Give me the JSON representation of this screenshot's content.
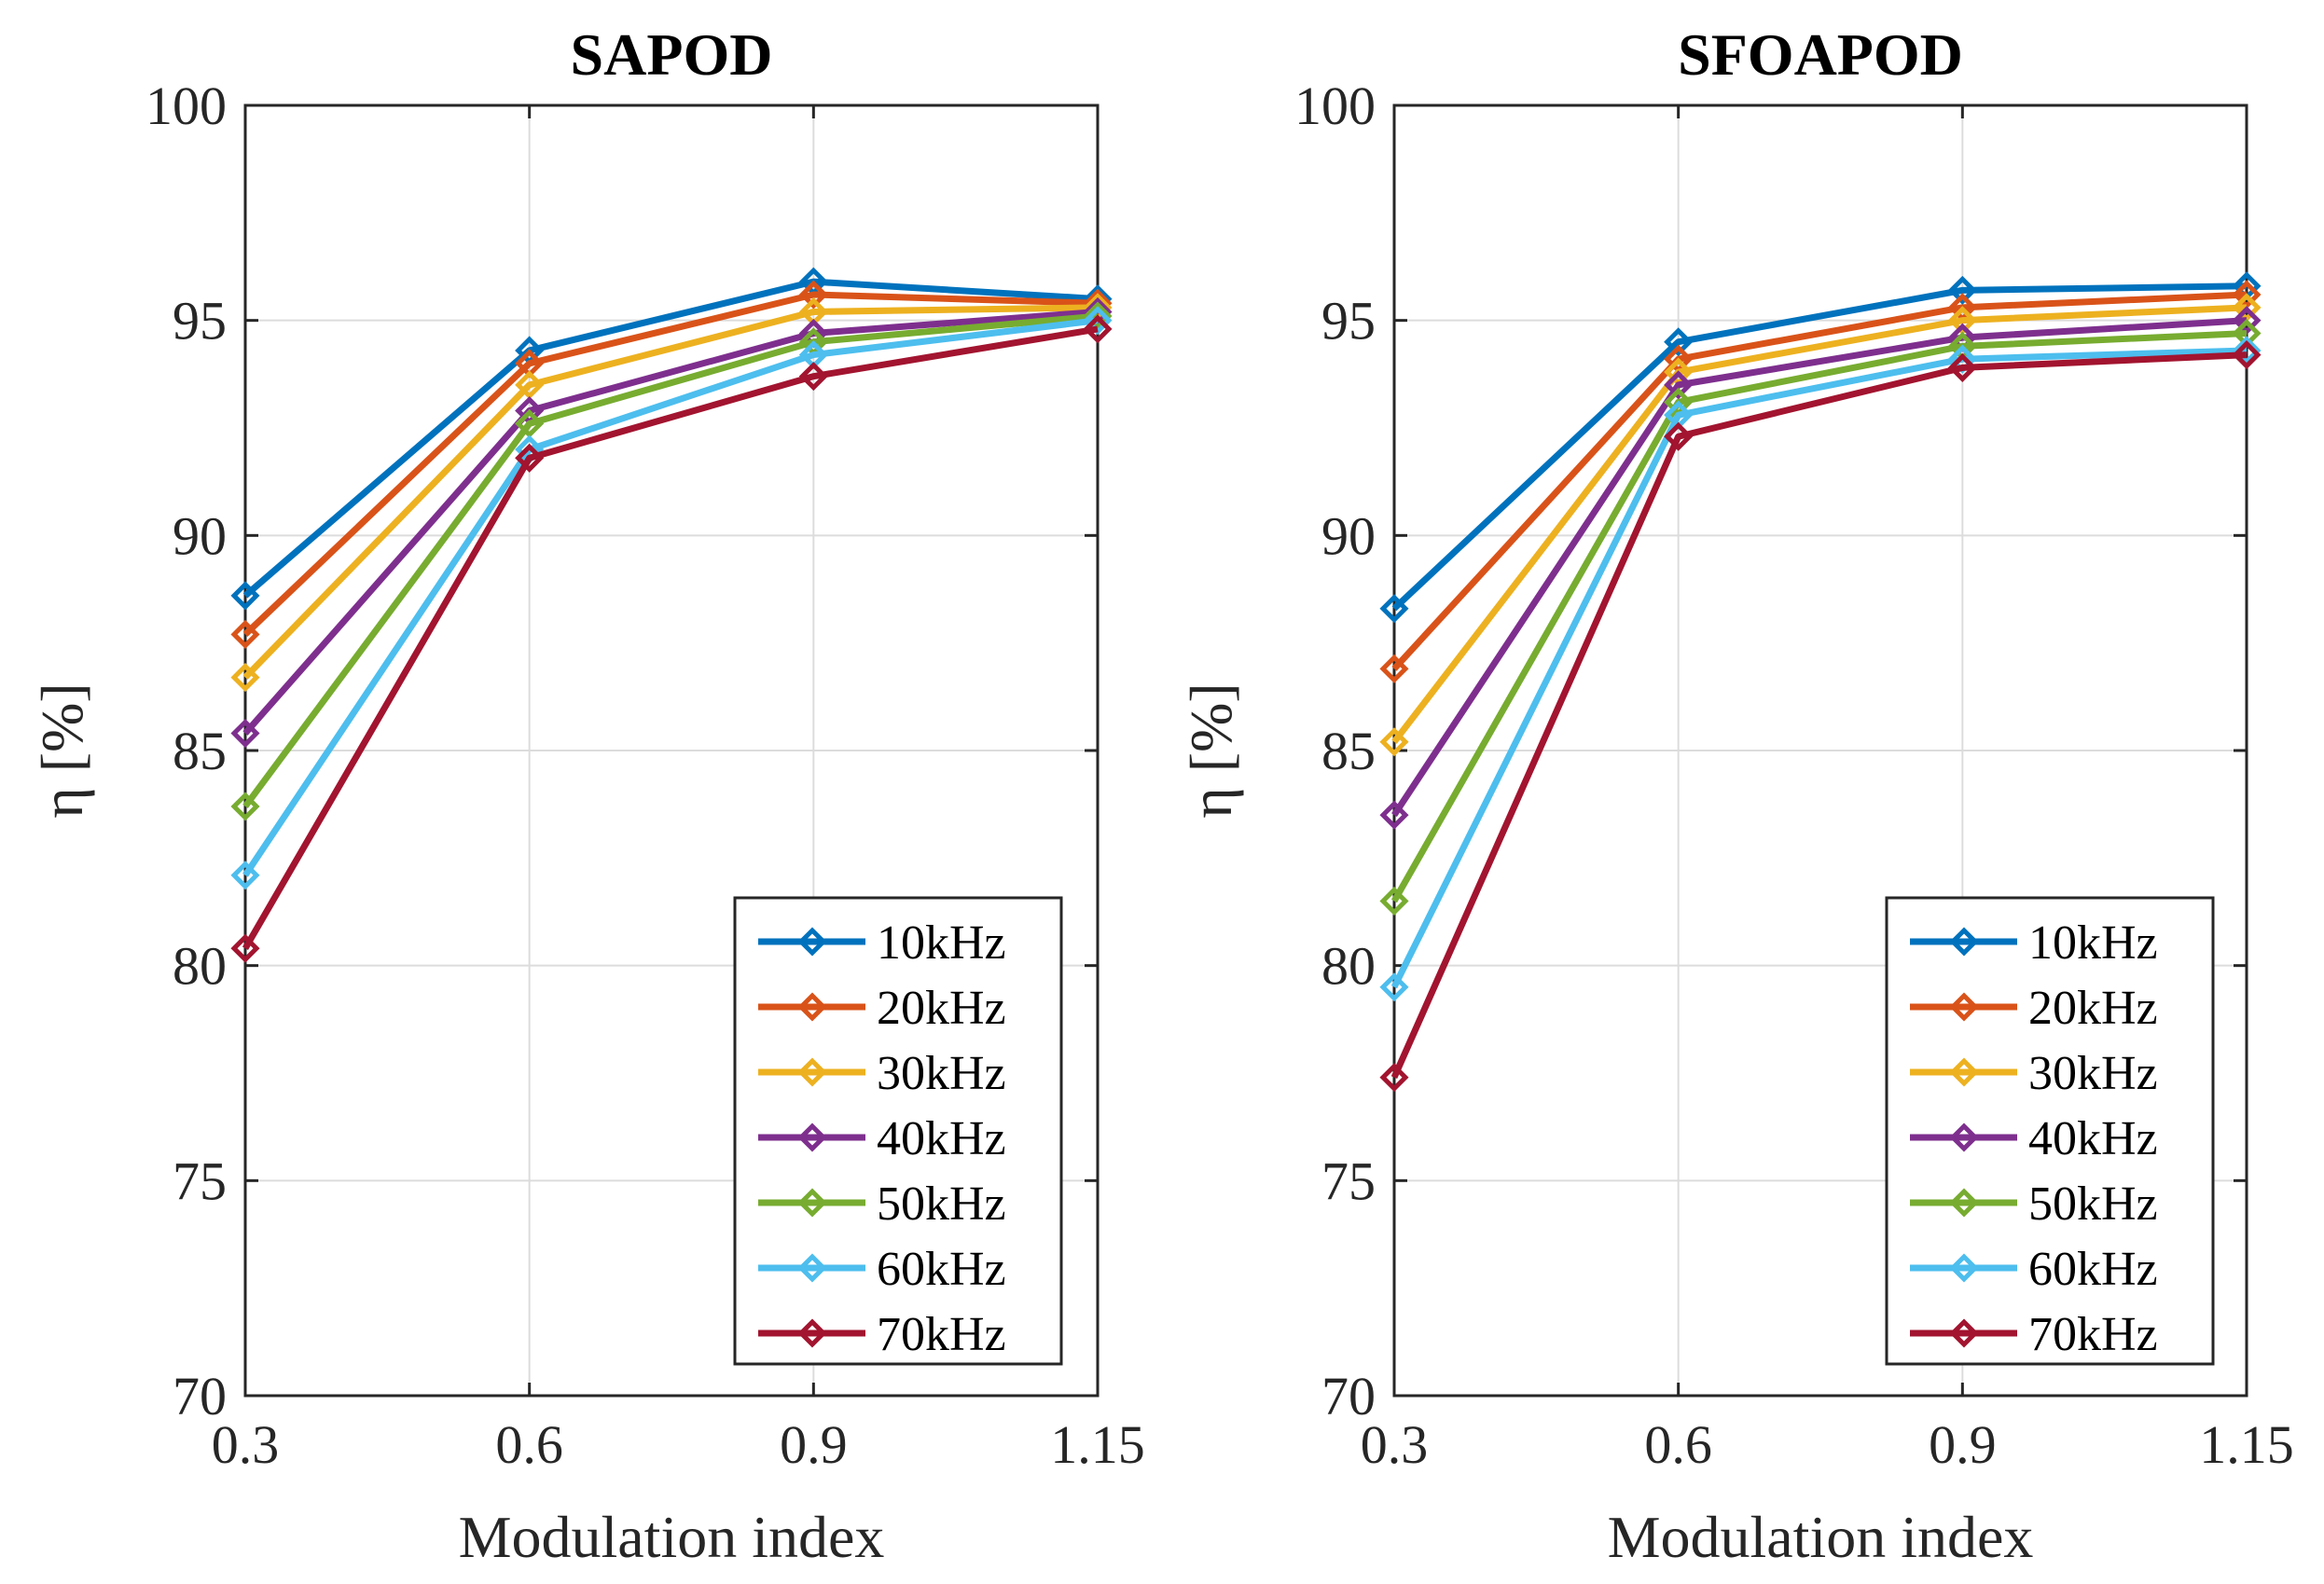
{
  "chart_data": [
    {
      "type": "line",
      "title": "SAPOD",
      "xlabel": "Modulation index",
      "ylabel": "η [%]",
      "categories": [
        "0.3",
        "0.6",
        "0.9",
        "1.15"
      ],
      "ylim": [
        70,
        100
      ],
      "yticks": [
        "70",
        "75",
        "80",
        "85",
        "90",
        "95",
        "100"
      ],
      "grid": true,
      "legend_position": "bottom-right",
      "series": [
        {
          "name": "10kHz",
          "color": "#0072BD",
          "values": [
            88.6,
            94.3,
            95.9,
            95.5
          ]
        },
        {
          "name": "20kHz",
          "color": "#D95319",
          "values": [
            87.7,
            94.0,
            95.6,
            95.4
          ]
        },
        {
          "name": "30kHz",
          "color": "#EDB120",
          "values": [
            86.7,
            93.5,
            95.2,
            95.3
          ]
        },
        {
          "name": "40kHz",
          "color": "#7E2F8E",
          "values": [
            85.4,
            92.9,
            94.7,
            95.2
          ]
        },
        {
          "name": "50kHz",
          "color": "#77AC30",
          "values": [
            83.7,
            92.6,
            94.5,
            95.1
          ]
        },
        {
          "name": "60kHz",
          "color": "#4DBEEE",
          "values": [
            82.1,
            92.0,
            94.2,
            95.0
          ]
        },
        {
          "name": "70kHz",
          "color": "#A2142F",
          "values": [
            80.4,
            91.8,
            93.7,
            94.8
          ]
        }
      ]
    },
    {
      "type": "line",
      "title": "SFOAPOD",
      "xlabel": "Modulation index",
      "ylabel": "η [%]",
      "categories": [
        "0.3",
        "0.6",
        "0.9",
        "1.15"
      ],
      "ylim": [
        70,
        100
      ],
      "yticks": [
        "70",
        "75",
        "80",
        "85",
        "90",
        "95",
        "100"
      ],
      "grid": true,
      "legend_position": "bottom-right",
      "series": [
        {
          "name": "10kHz",
          "color": "#0072BD",
          "values": [
            88.3,
            94.5,
            95.7,
            95.8
          ]
        },
        {
          "name": "20kHz",
          "color": "#D95319",
          "values": [
            86.9,
            94.1,
            95.3,
            95.6
          ]
        },
        {
          "name": "30kHz",
          "color": "#EDB120",
          "values": [
            85.2,
            93.8,
            95.0,
            95.3
          ]
        },
        {
          "name": "40kHz",
          "color": "#7E2F8E",
          "values": [
            83.5,
            93.5,
            94.6,
            95.0
          ]
        },
        {
          "name": "50kHz",
          "color": "#77AC30",
          "values": [
            81.5,
            93.1,
            94.4,
            94.7
          ]
        },
        {
          "name": "60kHz",
          "color": "#4DBEEE",
          "values": [
            79.5,
            92.8,
            94.1,
            94.3
          ]
        },
        {
          "name": "70kHz",
          "color": "#A2142F",
          "values": [
            77.4,
            92.3,
            93.9,
            94.2
          ]
        }
      ]
    }
  ]
}
